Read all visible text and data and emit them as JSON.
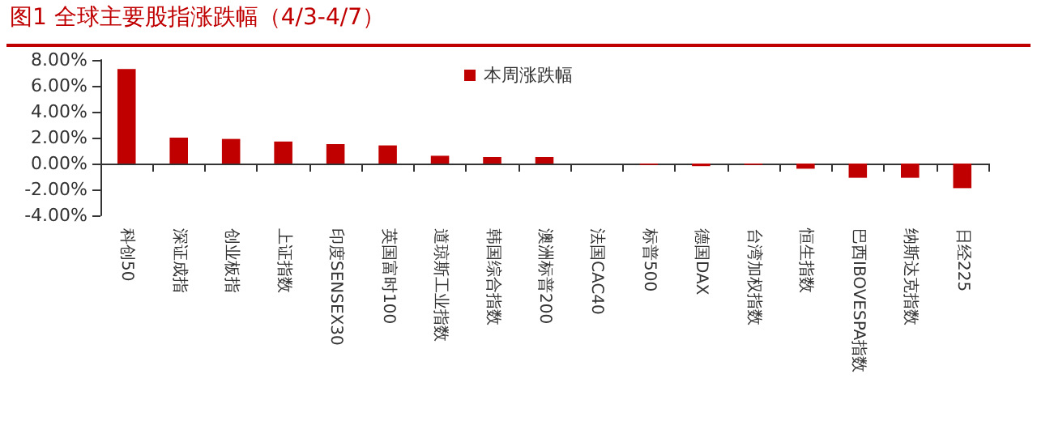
{
  "chart_data": {
    "type": "bar",
    "title": "图1 全球主要股指涨跌幅（4/3-4/7）",
    "categories": [
      "科创50",
      "深证成指",
      "创业板指",
      "上证指数",
      "印度SENSEX30",
      "英国富时100",
      "道琼斯工业指数",
      "韩国综合指数",
      "澳洲标普200",
      "法国CAC40",
      "标普500",
      "德国DAX",
      "台湾加权指数",
      "恒生指数",
      "巴西IBOVESPA指数",
      "纳斯达克指数",
      "日经225"
    ],
    "series": [
      {
        "name": "本周涨跌幅",
        "color": "#c00000",
        "values": [
          7.3,
          2.0,
          1.9,
          1.7,
          1.5,
          1.4,
          0.6,
          0.5,
          0.5,
          0,
          -0.1,
          -0.2,
          -0.1,
          -0.4,
          -1.1,
          -1.1,
          -1.9
        ]
      }
    ],
    "ylim": [
      -4,
      8
    ],
    "yticks": [
      {
        "value": -4,
        "label": "-4.00%"
      },
      {
        "value": -2,
        "label": "-2.00%"
      },
      {
        "value": 0,
        "label": "0.00%"
      },
      {
        "value": 2,
        "label": "2.00%"
      },
      {
        "value": 4,
        "label": "4.00%"
      },
      {
        "value": 6,
        "label": "6.00%"
      },
      {
        "value": 8,
        "label": "8.00%"
      }
    ],
    "legend": "top"
  }
}
